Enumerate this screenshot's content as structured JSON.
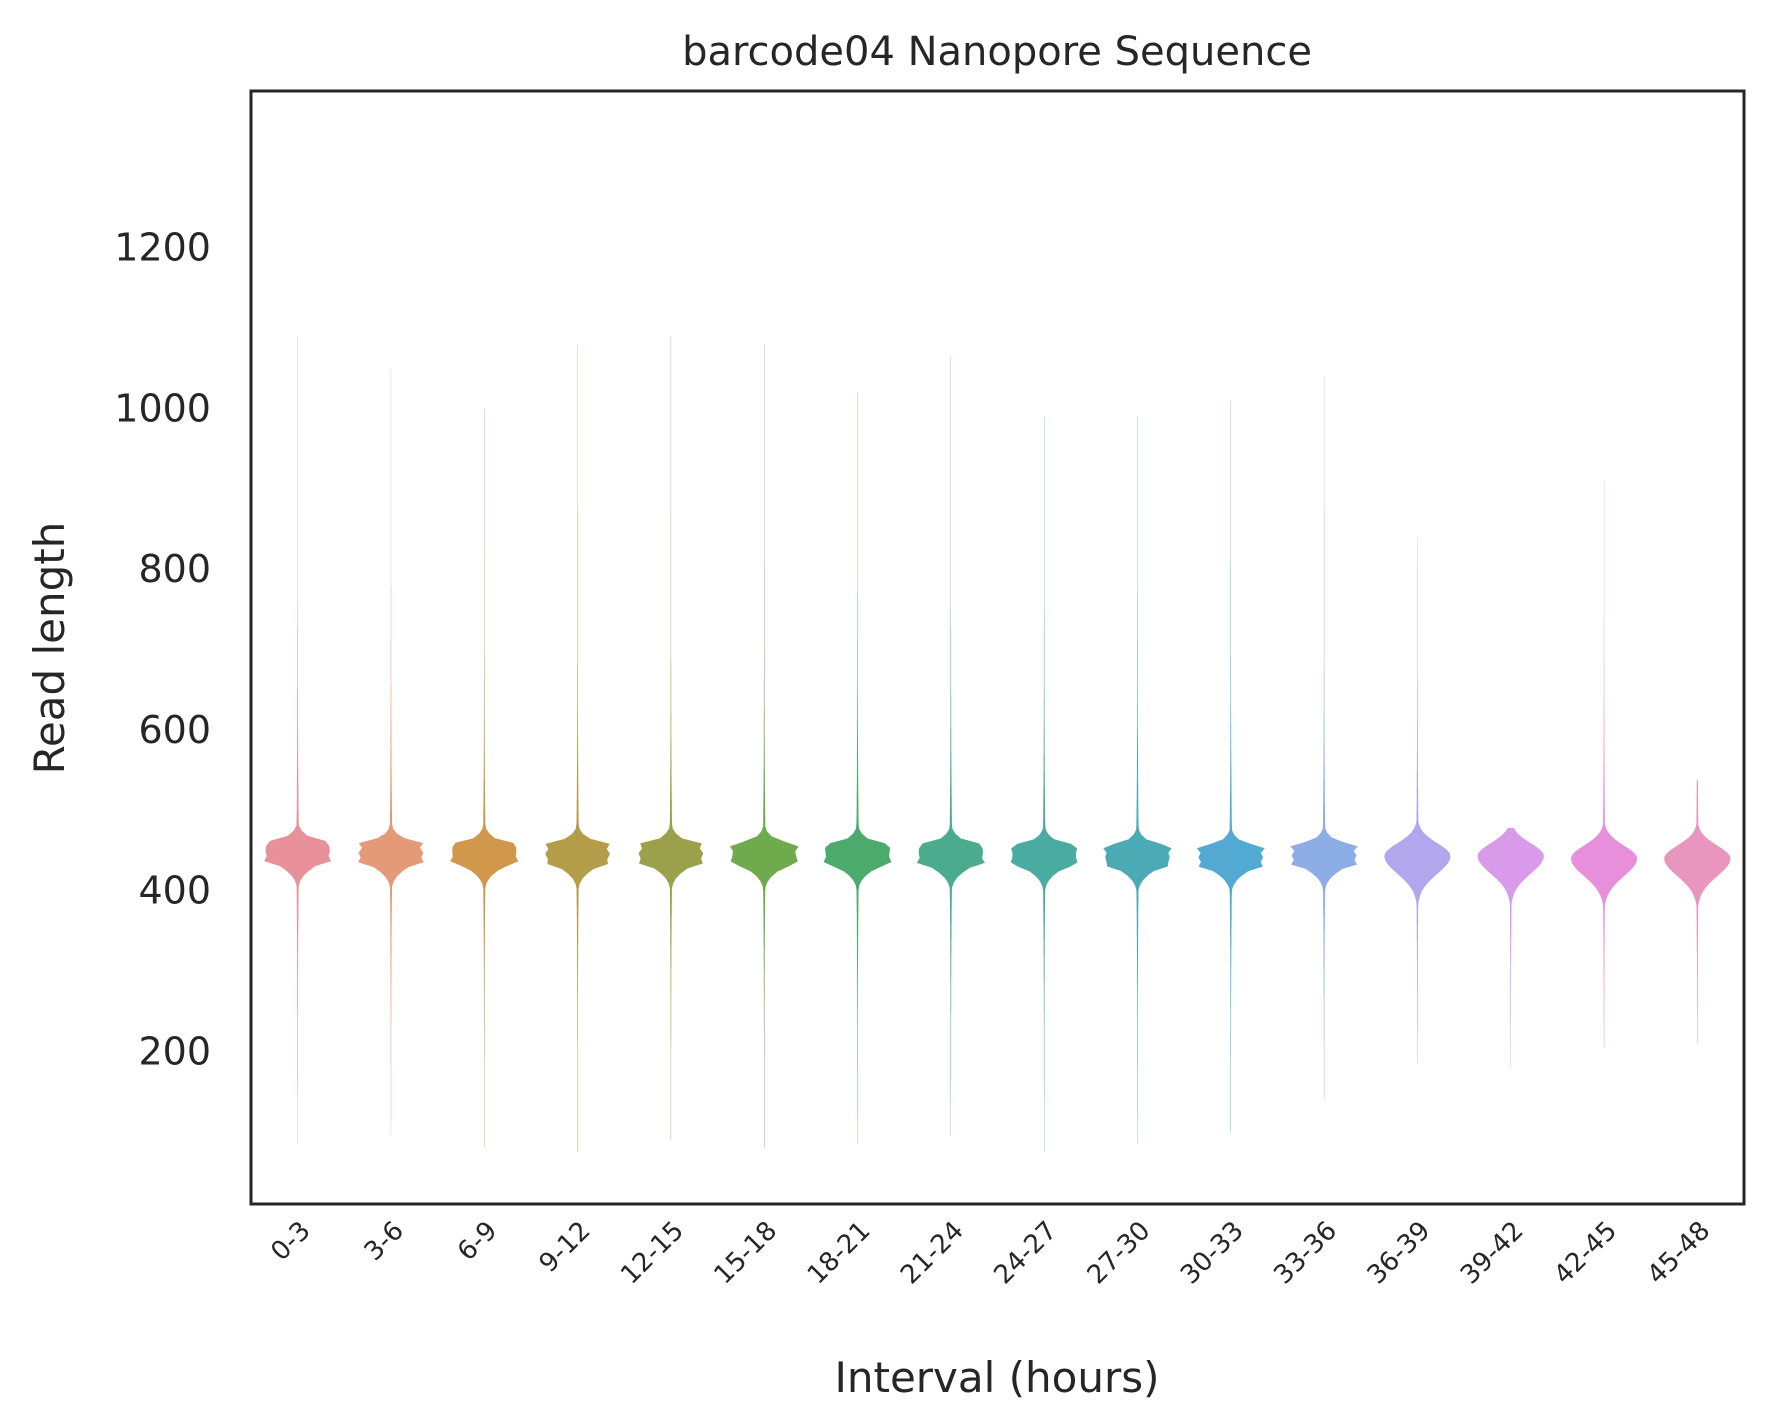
{
  "chart_data": {
    "type": "violin",
    "title": "barcode04 Nanopore Sequence",
    "xlabel": "Interval (hours)",
    "ylabel": "Read length",
    "ylim": [
      10,
      1395
    ],
    "yticks": [
      200,
      400,
      600,
      800,
      1000,
      1200
    ],
    "grid": false,
    "legend": "none",
    "categories": [
      "0-3",
      "3-6",
      "6-9",
      "9-12",
      "12-15",
      "15-18",
      "18-21",
      "21-24",
      "24-27",
      "27-30",
      "30-33",
      "33-36",
      "36-39",
      "39-42",
      "42-45",
      "45-48"
    ],
    "colors": [
      "#e8919b",
      "#e49a78",
      "#d1984c",
      "#b39d48",
      "#9aa14a",
      "#6fab4c",
      "#4caa6c",
      "#4aab8d",
      "#4aaba1",
      "#4caab5",
      "#52aad3",
      "#8dade6",
      "#b2a7ec",
      "#d89ae9",
      "#e78fdb",
      "#e996bf"
    ],
    "violins": [
      {
        "category": "0-3",
        "min": 85,
        "max": 1090,
        "median": 448
      },
      {
        "category": "3-6",
        "min": 95,
        "max": 1050,
        "median": 447
      },
      {
        "category": "6-9",
        "min": 80,
        "max": 1000,
        "median": 446
      },
      {
        "category": "9-12",
        "min": 75,
        "max": 1080,
        "median": 446
      },
      {
        "category": "12-15",
        "min": 90,
        "max": 1090,
        "median": 446
      },
      {
        "category": "15-18",
        "min": 80,
        "max": 1080,
        "median": 445
      },
      {
        "category": "18-21",
        "min": 85,
        "max": 1020,
        "median": 445
      },
      {
        "category": "21-24",
        "min": 95,
        "max": 1065,
        "median": 445
      },
      {
        "category": "24-27",
        "min": 75,
        "max": 990,
        "median": 444
      },
      {
        "category": "27-30",
        "min": 85,
        "max": 990,
        "median": 443
      },
      {
        "category": "30-33",
        "min": 100,
        "max": 1010,
        "median": 442
      },
      {
        "category": "33-36",
        "min": 140,
        "max": 1040,
        "median": 444
      },
      {
        "category": "36-39",
        "min": 185,
        "max": 840,
        "median": 443
      },
      {
        "category": "39-42",
        "min": 180,
        "max": 478,
        "median": 443
      },
      {
        "category": "42-45",
        "min": 205,
        "max": 910,
        "median": 440
      },
      {
        "category": "45-48",
        "min": 210,
        "max": 538,
        "median": 440
      }
    ]
  }
}
